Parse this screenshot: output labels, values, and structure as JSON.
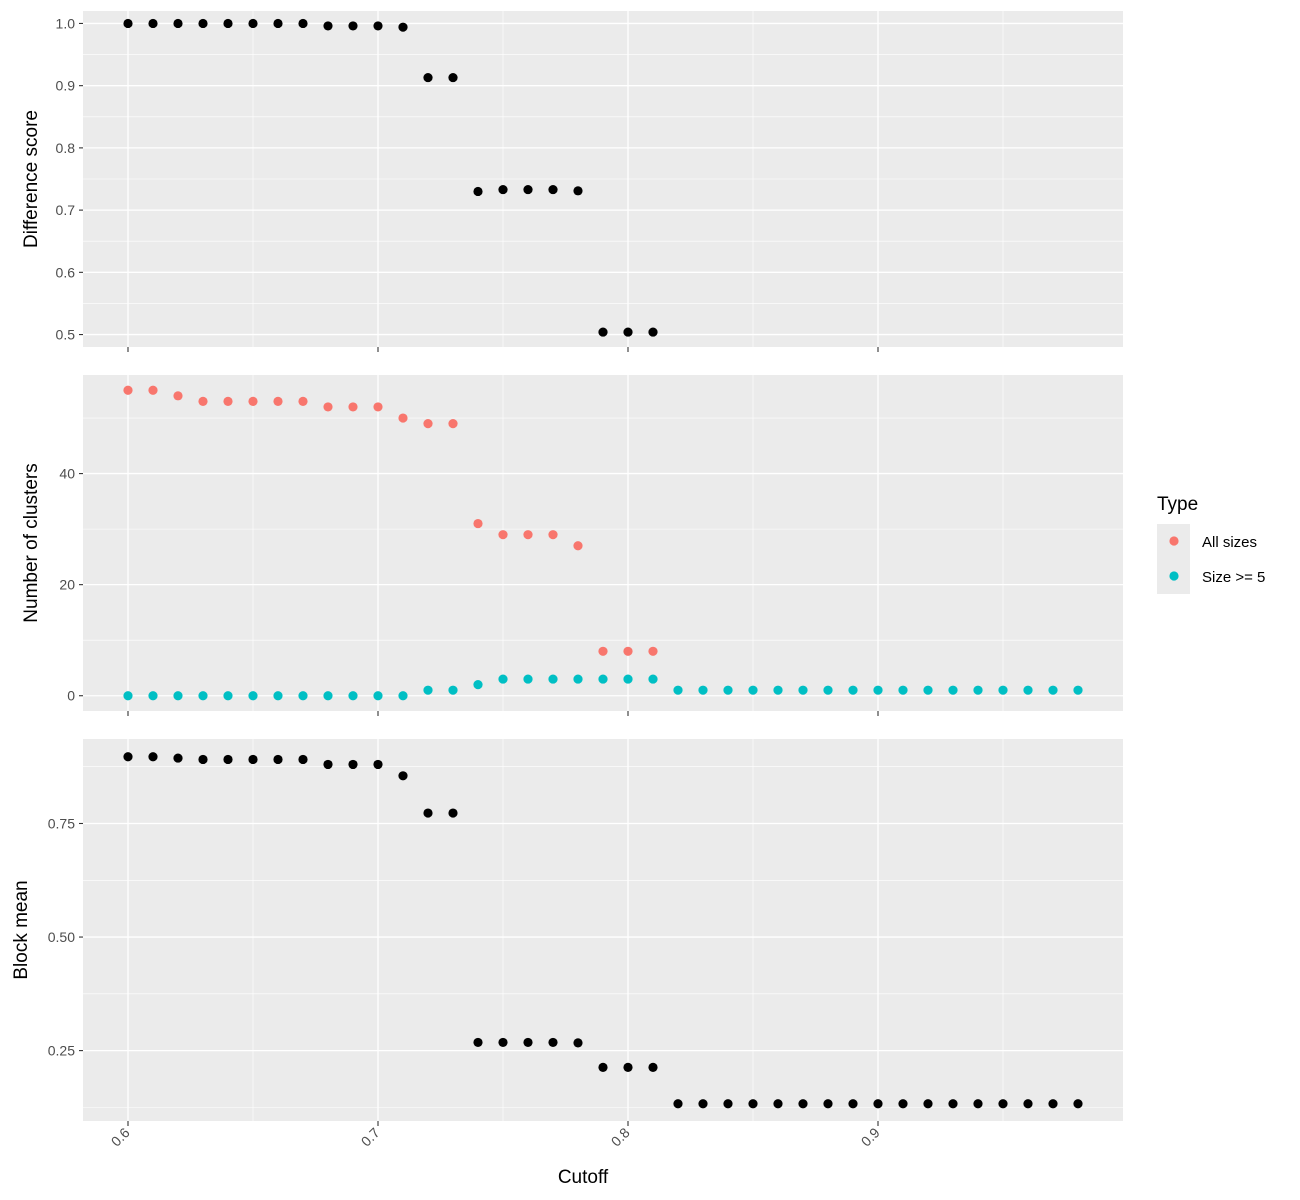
{
  "chart_data": [
    {
      "type": "scatter",
      "panel": "top",
      "ylabel": "Difference score",
      "xlim": [
        0.582,
        0.998
      ],
      "ylim": [
        0.48,
        1.02
      ],
      "x_ticks": [
        0.6,
        0.7,
        0.8,
        0.9
      ],
      "y_ticks": [
        0.5,
        0.6,
        0.7,
        0.8,
        0.9,
        1.0
      ],
      "y_tick_labels": [
        "0.5",
        "0.6",
        "0.7",
        "0.8",
        "0.9",
        "1.0"
      ],
      "series": [
        {
          "color": "#000000",
          "x": [
            0.6,
            0.61,
            0.62,
            0.63,
            0.64,
            0.65,
            0.66,
            0.67,
            0.68,
            0.69,
            0.7,
            0.71,
            0.72,
            0.73,
            0.74,
            0.75,
            0.76,
            0.77,
            0.78,
            0.79,
            0.8,
            0.81
          ],
          "y": [
            1.0,
            1.0,
            1.0,
            1.0,
            1.0,
            1.0,
            1.0,
            1.0,
            0.996,
            0.996,
            0.996,
            0.994,
            0.913,
            0.913,
            0.73,
            0.733,
            0.733,
            0.733,
            0.731,
            0.504,
            0.504,
            0.504
          ]
        }
      ]
    },
    {
      "type": "scatter",
      "panel": "middle",
      "ylabel": "Number of clusters",
      "xlim": [
        0.582,
        0.998
      ],
      "ylim": [
        -2.75,
        57.75
      ],
      "x_ticks": [
        0.6,
        0.7,
        0.8,
        0.9
      ],
      "y_ticks": [
        0,
        20,
        40
      ],
      "y_tick_labels": [
        "0",
        "20",
        "40"
      ],
      "legend": {
        "title": "Type",
        "position": "right"
      },
      "series": [
        {
          "name": "All sizes",
          "color": "#F8766D",
          "x": [
            0.6,
            0.61,
            0.62,
            0.63,
            0.64,
            0.65,
            0.66,
            0.67,
            0.68,
            0.69,
            0.7,
            0.71,
            0.72,
            0.73,
            0.74,
            0.75,
            0.76,
            0.77,
            0.78,
            0.79,
            0.8,
            0.81
          ],
          "y": [
            55,
            55,
            54,
            53,
            53,
            53,
            53,
            53,
            52,
            52,
            52,
            50,
            49,
            49,
            31,
            29,
            29,
            29,
            27,
            8,
            8,
            8
          ]
        },
        {
          "name": "Size >= 5",
          "color": "#00BFC4",
          "x": [
            0.6,
            0.61,
            0.62,
            0.63,
            0.64,
            0.65,
            0.66,
            0.67,
            0.68,
            0.69,
            0.7,
            0.71,
            0.72,
            0.73,
            0.74,
            0.75,
            0.76,
            0.77,
            0.78,
            0.79,
            0.8,
            0.81,
            0.82,
            0.83,
            0.84,
            0.85,
            0.86,
            0.87,
            0.88,
            0.89,
            0.9,
            0.91,
            0.92,
            0.93,
            0.94,
            0.95,
            0.96,
            0.97,
            0.98
          ],
          "y": [
            0,
            0,
            0,
            0,
            0,
            0,
            0,
            0,
            0,
            0,
            0,
            0,
            1,
            1,
            2,
            3,
            3,
            3,
            3,
            3,
            3,
            3,
            1,
            1,
            1,
            1,
            1,
            1,
            1,
            1,
            1,
            1,
            1,
            1,
            1,
            1,
            1,
            1,
            1
          ]
        }
      ]
    },
    {
      "type": "scatter",
      "panel": "bottom",
      "ylabel": "Block mean",
      "xlabel": "Cutoff",
      "xlim": [
        0.582,
        0.998
      ],
      "ylim": [
        0.095,
        0.936
      ],
      "x_ticks": [
        0.6,
        0.7,
        0.8,
        0.9
      ],
      "x_tick_labels": [
        "0.6",
        "0.7",
        "0.8",
        "0.9"
      ],
      "y_ticks": [
        0.25,
        0.5,
        0.75
      ],
      "y_tick_labels": [
        "0.25",
        "0.50",
        "0.75"
      ],
      "series": [
        {
          "color": "#000000",
          "x": [
            0.6,
            0.61,
            0.62,
            0.63,
            0.64,
            0.65,
            0.66,
            0.67,
            0.68,
            0.69,
            0.7,
            0.71,
            0.72,
            0.73,
            0.74,
            0.75,
            0.76,
            0.77,
            0.78,
            0.79,
            0.8,
            0.81,
            0.82,
            0.83,
            0.84,
            0.85,
            0.86,
            0.87,
            0.88,
            0.89,
            0.9,
            0.91,
            0.92,
            0.93,
            0.94,
            0.95,
            0.96,
            0.97,
            0.98
          ],
          "y": [
            0.897,
            0.897,
            0.894,
            0.891,
            0.891,
            0.891,
            0.891,
            0.891,
            0.88,
            0.88,
            0.88,
            0.855,
            0.773,
            0.773,
            0.268,
            0.268,
            0.268,
            0.268,
            0.267,
            0.213,
            0.213,
            0.213,
            0.133,
            0.133,
            0.133,
            0.133,
            0.133,
            0.133,
            0.133,
            0.133,
            0.133,
            0.133,
            0.133,
            0.133,
            0.133,
            0.133,
            0.133,
            0.133,
            0.133
          ]
        }
      ]
    }
  ]
}
